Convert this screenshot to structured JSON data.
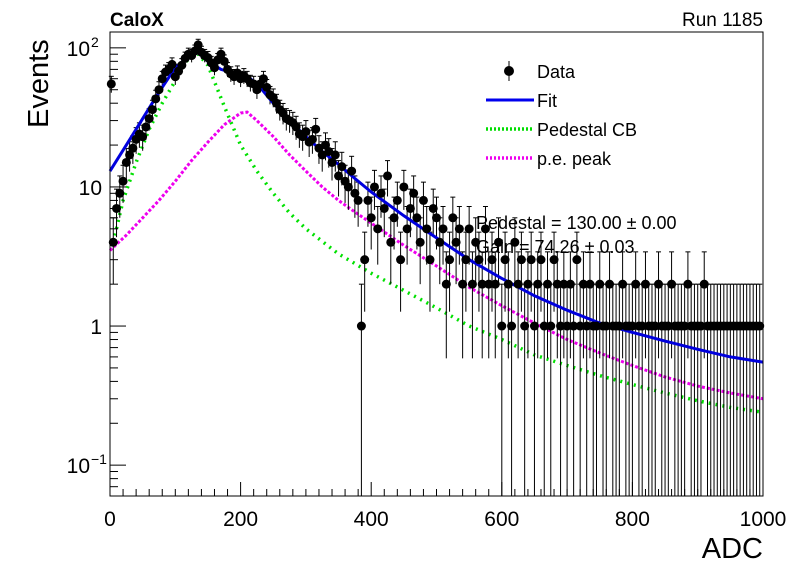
{
  "header": {
    "experiment": "CaloX",
    "run": "Run 1185"
  },
  "chart_data": {
    "type": "scatter",
    "xlabel": "ADC",
    "ylabel": "Events",
    "xlim": [
      0,
      1000
    ],
    "ylim": [
      0.06,
      130
    ],
    "yscale": "log",
    "grid": false,
    "legend_position": "top-right",
    "x_ticks": [
      0,
      200,
      400,
      600,
      800,
      1000
    ],
    "y_ticks": [
      {
        "value": 0.1,
        "base": "10",
        "exp": "−1"
      },
      {
        "value": 1,
        "base": "1",
        "exp": ""
      },
      {
        "value": 10,
        "base": "10",
        "exp": ""
      },
      {
        "value": 100,
        "base": "10",
        "exp": "2"
      }
    ],
    "legend": [
      {
        "label": "Data",
        "style": "marker"
      },
      {
        "label": "Fit",
        "style": "solid",
        "color": "#0000ee"
      },
      {
        "label": "Pedestal CB",
        "style": "dotted",
        "color": "#00dd00"
      },
      {
        "label": "p.e. peak",
        "style": "dotted",
        "color": "#ee00ee"
      }
    ],
    "annotations": [
      "Pedestal = 130.00 ± 0.00",
      "Gain = 74.26 ± 0.03"
    ],
    "colors": {
      "data": "#000000",
      "fit": "#0000dd",
      "pedestal": "#00e000",
      "pe_peak": "#ee00ee"
    },
    "data_points": [
      [
        2,
        55
      ],
      [
        5,
        4
      ],
      [
        10,
        7
      ],
      [
        15,
        9
      ],
      [
        20,
        11
      ],
      [
        25,
        15
      ],
      [
        30,
        17
      ],
      [
        35,
        19
      ],
      [
        40,
        22
      ],
      [
        45,
        24
      ],
      [
        50,
        23
      ],
      [
        55,
        27
      ],
      [
        60,
        31
      ],
      [
        65,
        36
      ],
      [
        70,
        43
      ],
      [
        75,
        50
      ],
      [
        80,
        60
      ],
      [
        85,
        67
      ],
      [
        90,
        70
      ],
      [
        95,
        76
      ],
      [
        100,
        62
      ],
      [
        105,
        68
      ],
      [
        110,
        75
      ],
      [
        115,
        84
      ],
      [
        120,
        90
      ],
      [
        125,
        88
      ],
      [
        130,
        95
      ],
      [
        135,
        105
      ],
      [
        140,
        93
      ],
      [
        145,
        88
      ],
      [
        150,
        85
      ],
      [
        155,
        78
      ],
      [
        160,
        72
      ],
      [
        165,
        82
      ],
      [
        170,
        90
      ],
      [
        175,
        80
      ],
      [
        180,
        70
      ],
      [
        185,
        65
      ],
      [
        190,
        62
      ],
      [
        195,
        66
      ],
      [
        200,
        60
      ],
      [
        205,
        63
      ],
      [
        210,
        60
      ],
      [
        215,
        56
      ],
      [
        220,
        55
      ],
      [
        225,
        50
      ],
      [
        230,
        55
      ],
      [
        235,
        60
      ],
      [
        240,
        52
      ],
      [
        245,
        46
      ],
      [
        250,
        44
      ],
      [
        255,
        40
      ],
      [
        260,
        36
      ],
      [
        265,
        34
      ],
      [
        270,
        31
      ],
      [
        275,
        30
      ],
      [
        280,
        29
      ],
      [
        285,
        27
      ],
      [
        290,
        24
      ],
      [
        295,
        23
      ],
      [
        300,
        25
      ],
      [
        305,
        21
      ],
      [
        310,
        22
      ],
      [
        315,
        26
      ],
      [
        320,
        19
      ],
      [
        325,
        17
      ],
      [
        330,
        20
      ],
      [
        335,
        18
      ],
      [
        340,
        15
      ],
      [
        345,
        17
      ],
      [
        350,
        12
      ],
      [
        355,
        14
      ],
      [
        360,
        11
      ],
      [
        365,
        10
      ],
      [
        370,
        13
      ],
      [
        375,
        9
      ],
      [
        380,
        8
      ],
      [
        385,
        1
      ],
      [
        390,
        3
      ],
      [
        395,
        8
      ],
      [
        400,
        6
      ],
      [
        405,
        10
      ],
      [
        410,
        5
      ],
      [
        415,
        9
      ],
      [
        420,
        7
      ],
      [
        425,
        12
      ],
      [
        430,
        4
      ],
      [
        435,
        6
      ],
      [
        440,
        8
      ],
      [
        445,
        3
      ],
      [
        450,
        10
      ],
      [
        455,
        5
      ],
      [
        460,
        7
      ],
      [
        465,
        9
      ],
      [
        470,
        6
      ],
      [
        475,
        4
      ],
      [
        480,
        8
      ],
      [
        485,
        5
      ],
      [
        490,
        3
      ],
      [
        495,
        7
      ],
      [
        500,
        6
      ],
      [
        505,
        4
      ],
      [
        510,
        5
      ],
      [
        515,
        2
      ],
      [
        520,
        3
      ],
      [
        525,
        6
      ],
      [
        530,
        4
      ],
      [
        535,
        5
      ],
      [
        540,
        2
      ],
      [
        545,
        3
      ],
      [
        550,
        5
      ],
      [
        555,
        2
      ],
      [
        560,
        4
      ],
      [
        565,
        3
      ],
      [
        570,
        2
      ],
      [
        575,
        5
      ],
      [
        580,
        2
      ],
      [
        585,
        3
      ],
      [
        590,
        2
      ],
      [
        595,
        4
      ],
      [
        600,
        1
      ],
      [
        605,
        3
      ],
      [
        610,
        2
      ],
      [
        615,
        1
      ],
      [
        620,
        4
      ],
      [
        625,
        2
      ],
      [
        630,
        3
      ],
      [
        635,
        1
      ],
      [
        640,
        2
      ],
      [
        645,
        3
      ],
      [
        650,
        1
      ],
      [
        655,
        2
      ],
      [
        660,
        3
      ],
      [
        665,
        1
      ],
      [
        670,
        2
      ],
      [
        675,
        1
      ],
      [
        680,
        3
      ],
      [
        685,
        2
      ],
      [
        690,
        1
      ],
      [
        695,
        2
      ],
      [
        700,
        1
      ],
      [
        705,
        2
      ],
      [
        710,
        1
      ],
      [
        715,
        3
      ],
      [
        720,
        1
      ],
      [
        725,
        2
      ],
      [
        730,
        1
      ],
      [
        735,
        2
      ],
      [
        740,
        1
      ],
      [
        745,
        1
      ],
      [
        750,
        2
      ],
      [
        755,
        1
      ],
      [
        760,
        1
      ],
      [
        765,
        2
      ],
      [
        770,
        1
      ],
      [
        775,
        1
      ],
      [
        780,
        1
      ],
      [
        785,
        2
      ],
      [
        790,
        1
      ],
      [
        795,
        1
      ],
      [
        800,
        1
      ],
      [
        805,
        2
      ],
      [
        810,
        1
      ],
      [
        815,
        1
      ],
      [
        820,
        2
      ],
      [
        825,
        1
      ],
      [
        830,
        1
      ],
      [
        835,
        1
      ],
      [
        840,
        2
      ],
      [
        845,
        1
      ],
      [
        850,
        1
      ],
      [
        855,
        1
      ],
      [
        860,
        2
      ],
      [
        865,
        1
      ],
      [
        870,
        1
      ],
      [
        875,
        1
      ],
      [
        880,
        1
      ],
      [
        885,
        2
      ],
      [
        890,
        1
      ],
      [
        895,
        1
      ],
      [
        900,
        1
      ],
      [
        905,
        1
      ],
      [
        910,
        2
      ],
      [
        915,
        1
      ],
      [
        920,
        1
      ],
      [
        925,
        1
      ],
      [
        930,
        1
      ],
      [
        935,
        1
      ],
      [
        940,
        1
      ],
      [
        945,
        1
      ],
      [
        950,
        1
      ],
      [
        955,
        1
      ],
      [
        960,
        1
      ],
      [
        965,
        1
      ],
      [
        970,
        1
      ],
      [
        975,
        1
      ],
      [
        980,
        1
      ],
      [
        985,
        1
      ],
      [
        990,
        1
      ],
      [
        995,
        1
      ]
    ],
    "fit_curve": [
      [
        0,
        13
      ],
      [
        25,
        20
      ],
      [
        50,
        31
      ],
      [
        75,
        48
      ],
      [
        100,
        72
      ],
      [
        125,
        90
      ],
      [
        135,
        92
      ],
      [
        150,
        80
      ],
      [
        170,
        70
      ],
      [
        200,
        64
      ],
      [
        215,
        60
      ],
      [
        230,
        52
      ],
      [
        250,
        40
      ],
      [
        275,
        30
      ],
      [
        300,
        23
      ],
      [
        325,
        18
      ],
      [
        350,
        14.5
      ],
      [
        375,
        11.5
      ],
      [
        400,
        9.2
      ],
      [
        450,
        6.2
      ],
      [
        500,
        4.3
      ],
      [
        550,
        3.0
      ],
      [
        600,
        2.2
      ],
      [
        650,
        1.65
      ],
      [
        700,
        1.3
      ],
      [
        750,
        1.05
      ],
      [
        800,
        0.9
      ],
      [
        850,
        0.78
      ],
      [
        900,
        0.68
      ],
      [
        950,
        0.6
      ],
      [
        1000,
        0.55
      ]
    ],
    "pedestal_cb_curve": [
      [
        5,
        4
      ],
      [
        20,
        8
      ],
      [
        40,
        15
      ],
      [
        60,
        26
      ],
      [
        80,
        40
      ],
      [
        100,
        58
      ],
      [
        115,
        78
      ],
      [
        125,
        88
      ],
      [
        135,
        90
      ],
      [
        150,
        75
      ],
      [
        175,
        38
      ],
      [
        200,
        20
      ],
      [
        225,
        13
      ],
      [
        250,
        9
      ],
      [
        275,
        6.5
      ],
      [
        300,
        5
      ],
      [
        350,
        3.3
      ],
      [
        400,
        2.4
      ],
      [
        450,
        1.8
      ],
      [
        500,
        1.35
      ],
      [
        550,
        1.0
      ],
      [
        600,
        0.8
      ],
      [
        650,
        0.62
      ],
      [
        700,
        0.52
      ],
      [
        750,
        0.44
      ],
      [
        800,
        0.38
      ],
      [
        850,
        0.33
      ],
      [
        900,
        0.29
      ],
      [
        950,
        0.26
      ],
      [
        1000,
        0.24
      ]
    ],
    "pe_peak_curve": [
      [
        0,
        3.5
      ],
      [
        25,
        4.5
      ],
      [
        50,
        6
      ],
      [
        75,
        8
      ],
      [
        100,
        11
      ],
      [
        125,
        15.5
      ],
      [
        150,
        21
      ],
      [
        175,
        28
      ],
      [
        200,
        34
      ],
      [
        210,
        34.5
      ],
      [
        225,
        30
      ],
      [
        250,
        23
      ],
      [
        275,
        17
      ],
      [
        300,
        13
      ],
      [
        325,
        10
      ],
      [
        350,
        8
      ],
      [
        375,
        6.6
      ],
      [
        400,
        5.5
      ],
      [
        450,
        3.8
      ],
      [
        500,
        2.7
      ],
      [
        550,
        1.9
      ],
      [
        600,
        1.4
      ],
      [
        650,
        1.05
      ],
      [
        700,
        0.8
      ],
      [
        750,
        0.64
      ],
      [
        800,
        0.52
      ],
      [
        850,
        0.43
      ],
      [
        900,
        0.37
      ],
      [
        950,
        0.33
      ],
      [
        1000,
        0.3
      ]
    ]
  }
}
